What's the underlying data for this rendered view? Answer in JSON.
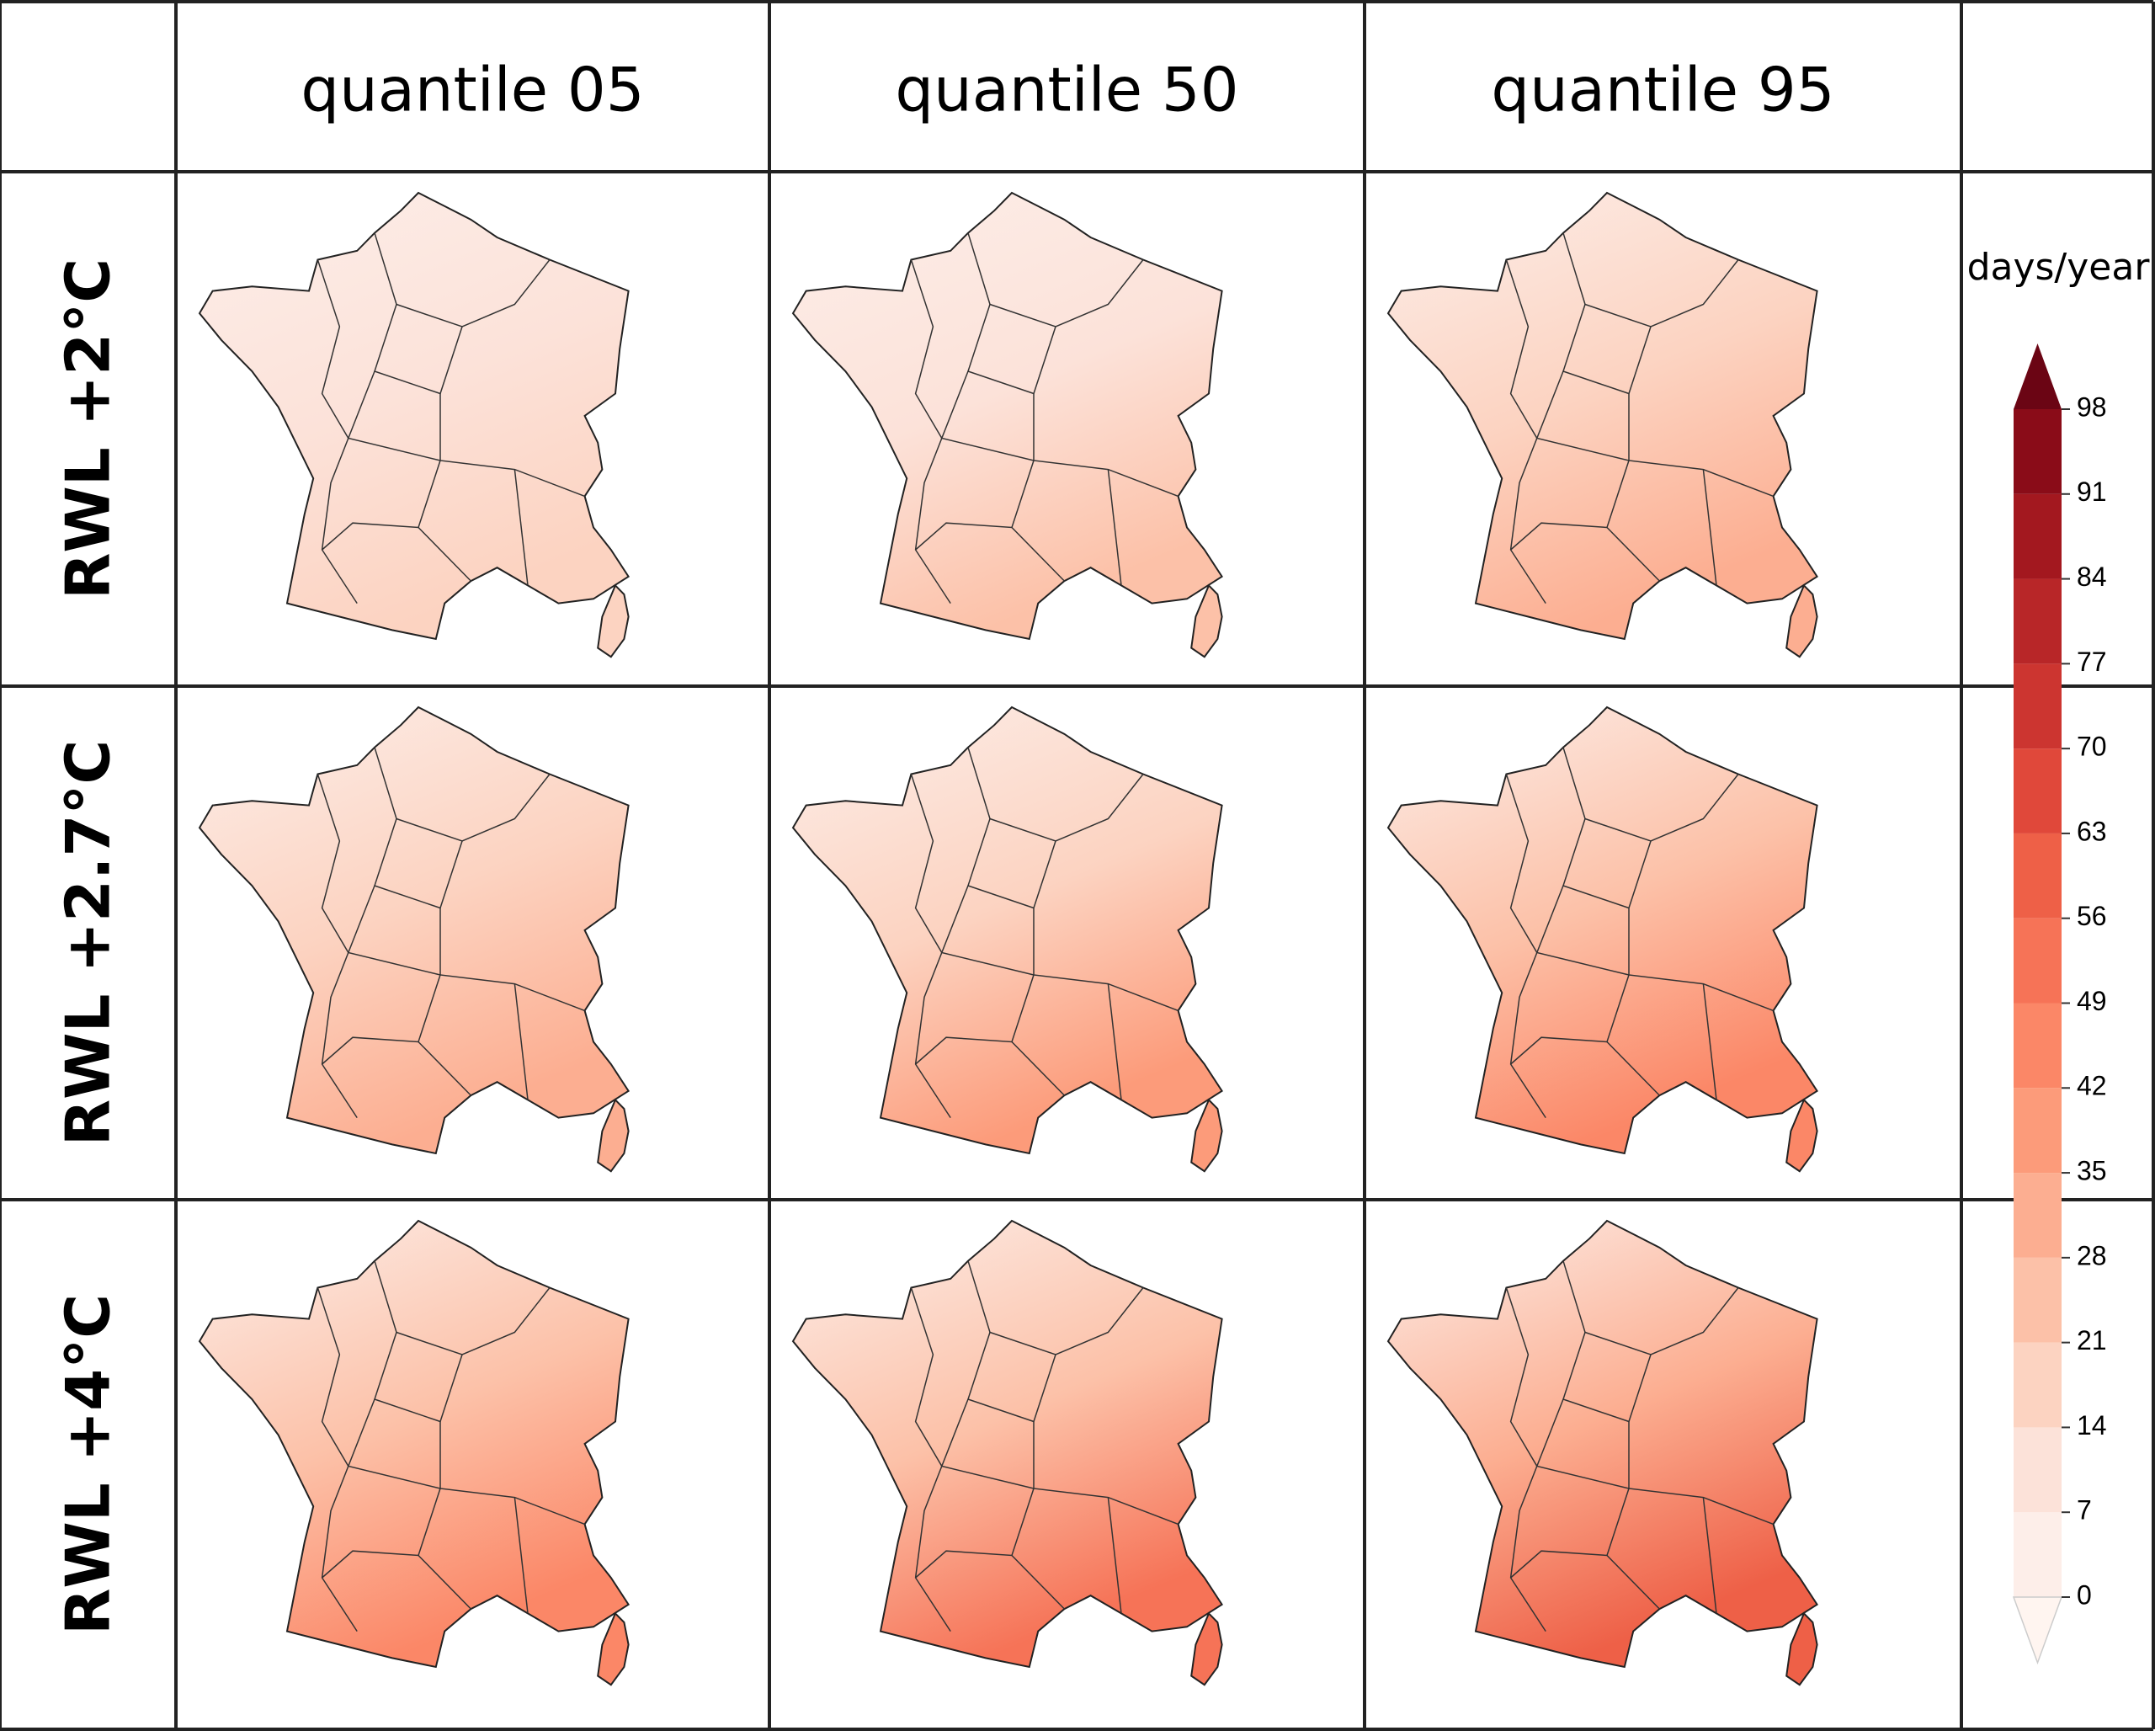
{
  "columns": [
    "quantile 05",
    "quantile 50",
    "quantile 95"
  ],
  "rows": [
    "RWL +2°C",
    "RWL +2.7°C",
    "RWL +4°C"
  ],
  "colorbar": {
    "label": "days/year",
    "ticks": [
      0,
      7,
      14,
      21,
      28,
      35,
      42,
      49,
      56,
      63,
      70,
      77,
      84,
      91,
      98
    ],
    "colors": [
      "#fdeee9",
      "#fce2d9",
      "#fcd3c1",
      "#fcc1a8",
      "#fcae91",
      "#fc9b7a",
      "#fb8767",
      "#f67357",
      "#ee6047",
      "#e0483a",
      "#cc3530",
      "#b82628",
      "#a3181f",
      "#8a0c18"
    ],
    "under_color": "#fff5f0",
    "over_color": "#6b0514"
  }
}
